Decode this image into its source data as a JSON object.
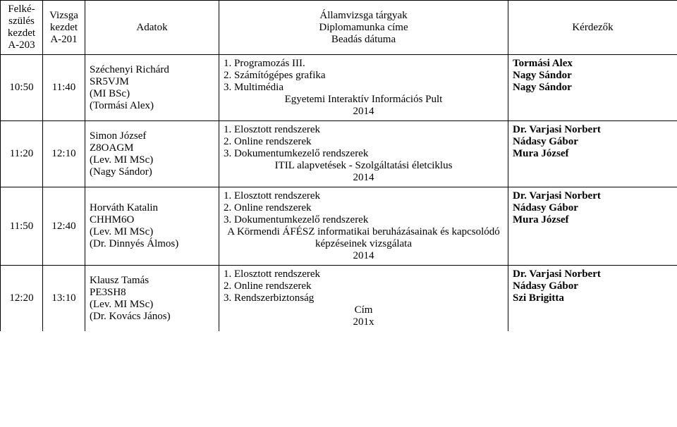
{
  "columns": {
    "prepCol": {
      "line1": "Felké-",
      "line2": "szülés",
      "line3": "kezdet",
      "line4": "A-203"
    },
    "examCol": {
      "line1": "Vizsga",
      "line2": "kezdet",
      "line3": "A-201"
    },
    "dataCol": "Adatok",
    "subjCol": {
      "line1": "Államvizsga tárgyak",
      "line2": "Diplomamunka címe",
      "line3": "Beadás dátuma"
    },
    "examinersCol": "Kérdezők"
  },
  "colWidths": [
    "60px",
    "60px",
    "190px",
    "410px",
    "240px"
  ],
  "rows": [
    {
      "prep": "10:50",
      "exam": "11:40",
      "data": [
        "Széchenyi Richárd",
        "SR5VJM",
        "(MI BSc)",
        "(Tormási Alex)"
      ],
      "subjects": [
        "1. Programozás III.",
        "2. Számítógépes grafika",
        "3. Multimédia"
      ],
      "thesis": "Egyetemi Interaktív Információs Pult",
      "year": "2014",
      "examiners": [
        "Tormási Alex",
        "Nagy Sándor",
        "Nagy Sándor"
      ]
    },
    {
      "prep": "11:20",
      "exam": "12:10",
      "data": [
        "Simon József",
        "Z8OAGM",
        "(Lev. MI MSc)",
        "(Nagy Sándor)"
      ],
      "subjects": [
        "1. Elosztott rendszerek",
        "2. Online rendszerek",
        "3. Dokumentumkezelő rendszerek"
      ],
      "thesis": "ITIL alapvetések - Szolgáltatási életciklus",
      "year": "2014",
      "examiners": [
        "Dr. Varjasi Norbert",
        "Nádasy Gábor",
        "Mura József"
      ]
    },
    {
      "prep": "11:50",
      "exam": "12:40",
      "data": [
        "Horváth Katalin",
        "CHHM6O",
        "(Lev. MI MSc)",
        "(Dr. Dinnyés Álmos)"
      ],
      "subjects": [
        "1. Elosztott rendszerek",
        "2. Online rendszerek",
        "3. Dokumentumkezelő rendszerek"
      ],
      "thesis": "A Körmendi ÁFÉSZ informatikai beruházásainak és kapcsolódó képzéseinek vizsgálata",
      "year": "2014",
      "examiners": [
        "Dr. Varjasi Norbert",
        "Nádasy Gábor",
        "Mura József"
      ]
    },
    {
      "prep": "12:20",
      "exam": "13:10",
      "data": [
        "Klausz Tamás",
        "PE3SH8",
        "(Lev. MI MSc)",
        "(Dr. Kovács János)"
      ],
      "subjects": [
        "1. Elosztott rendszerek",
        "2. Online rendszerek",
        "3. Rendszerbiztonság"
      ],
      "thesis": "Cím",
      "year": "201x",
      "examiners": [
        "Dr. Varjasi Norbert",
        "Nádasy Gábor",
        "Szi Brigitta"
      ],
      "lastRow": true
    }
  ],
  "style": {
    "border_color": "#000000",
    "background_color": "#ffffff",
    "font_family": "Times New Roman",
    "base_fontsize": 15,
    "examiner_bold": true
  }
}
